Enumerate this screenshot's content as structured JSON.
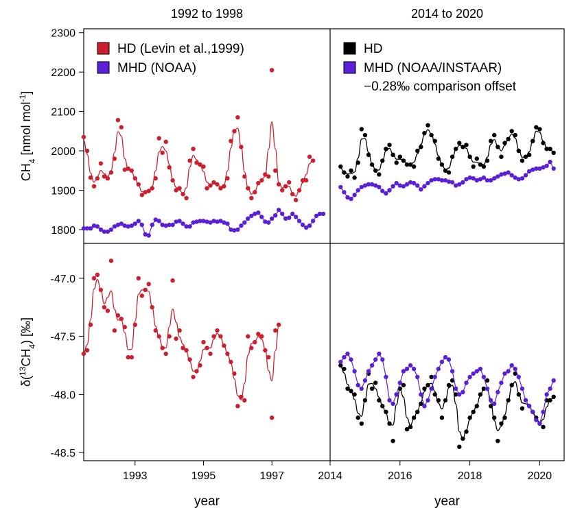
{
  "chart_data": {
    "type": "scatter",
    "columns": [
      {
        "title": "1992 to 1998",
        "xlim": [
          1991.5,
          1998.7
        ],
        "xticks": [
          "1993",
          "1995",
          "1997"
        ],
        "xlabel": "year"
      },
      {
        "title": "2014 to 2020",
        "xlim": [
          2014.0,
          2020.7
        ],
        "xticks": [
          "2014",
          "2016",
          "2018",
          "2020"
        ],
        "xlabel": "year"
      }
    ],
    "rows": [
      {
        "ylabel_main": "CH",
        "ylabel_sub": "4",
        "ylabel_rest": " [nmol mol",
        "ylabel_sup": "-1",
        "ylabel_end": "]",
        "ylim": [
          1765,
          2310
        ],
        "yticks": [
          "1800",
          "1900",
          "2000",
          "2100",
          "2200",
          "2300"
        ]
      },
      {
        "ylabel_main": "δ(",
        "ylabel_sup": "13",
        "ylabel_rest": "CH",
        "ylabel_sub": "4",
        "ylabel_end": ") [‰]",
        "ylim": [
          -48.57,
          -46.7
        ],
        "yticks": [
          "-48.5",
          "-48.0",
          "-47.5",
          "-47.0"
        ]
      }
    ],
    "legend_left": [
      {
        "label": "HD (Levin et al.,1999)",
        "color": "#cc1f2d"
      },
      {
        "label": "MHD (NOAA)",
        "color": "#5a1fd6"
      }
    ],
    "legend_right": [
      {
        "label": "HD",
        "color": "#000000"
      },
      {
        "label": "MHD (NOAA/INSTAAR)",
        "color": "#5a1fd6"
      }
    ],
    "annotation_right": "−0.28‰ comparison offset",
    "series": [
      {
        "name": "HD (Levin et al.,1999)",
        "panel": "ch4_early",
        "color": "#cc1f2d",
        "curve": true,
        "x": [
          1991.5,
          1991.6,
          1991.7,
          1991.8,
          1991.9,
          1992.0,
          1992.1,
          1992.2,
          1992.3,
          1992.4,
          1992.5,
          1992.6,
          1992.7,
          1992.8,
          1992.9,
          1993.0,
          1993.1,
          1993.2,
          1993.3,
          1993.4,
          1993.5,
          1993.6,
          1993.7,
          1993.8,
          1993.9,
          1994.0,
          1994.1,
          1994.2,
          1994.3,
          1994.4,
          1994.5,
          1994.6,
          1994.7,
          1994.8,
          1994.9,
          1995.0,
          1995.1,
          1995.2,
          1995.3,
          1995.4,
          1995.5,
          1995.6,
          1995.7,
          1995.8,
          1995.9,
          1996.0,
          1996.1,
          1996.2,
          1996.3,
          1996.4,
          1996.5,
          1996.6,
          1996.7,
          1996.8,
          1996.9,
          1997.0,
          1997.1,
          1997.2,
          1997.3,
          1997.4,
          1997.5,
          1997.6,
          1997.7,
          1997.8,
          1997.9,
          1998.0,
          1998.1,
          1998.2
        ],
        "y": [
          2035,
          2000,
          1932,
          1910,
          1930,
          1968,
          1935,
          1930,
          1945,
          1980,
          2078,
          2060,
          1952,
          1955,
          1950,
          1930,
          1915,
          1888,
          1895,
          1898,
          1905,
          1930,
          2032,
          1995,
          2023,
          1958,
          1925,
          1900,
          1905,
          1890,
          1880,
          1975,
          2005,
          1970,
          1965,
          1960,
          1905,
          1912,
          1920,
          1915,
          1905,
          1910,
          1930,
          2025,
          2050,
          2085,
          2010,
          1935,
          1905,
          1880,
          1895,
          1918,
          1925,
          1940,
          1935,
          2205,
          1950,
          1915,
          1900,
          1910,
          1920,
          1890,
          1875,
          1900,
          1925,
          1925,
          1985,
          1975
        ]
      },
      {
        "name": "MHD (NOAA)",
        "panel": "ch4_early",
        "color": "#5a1fd6",
        "curve": false,
        "x": [
          1991.5,
          1991.6,
          1991.7,
          1991.8,
          1991.9,
          1992.0,
          1992.1,
          1992.2,
          1992.3,
          1992.4,
          1992.5,
          1992.6,
          1992.7,
          1992.8,
          1992.9,
          1993.0,
          1993.1,
          1993.2,
          1993.3,
          1993.4,
          1993.5,
          1993.6,
          1993.7,
          1993.8,
          1993.9,
          1994.0,
          1994.1,
          1994.2,
          1994.3,
          1994.4,
          1994.5,
          1994.6,
          1994.7,
          1994.8,
          1994.9,
          1995.0,
          1995.1,
          1995.2,
          1995.3,
          1995.4,
          1995.5,
          1995.6,
          1995.7,
          1995.8,
          1995.9,
          1996.0,
          1996.1,
          1996.2,
          1996.3,
          1996.4,
          1996.5,
          1996.6,
          1996.7,
          1996.8,
          1996.9,
          1997.0,
          1997.1,
          1997.2,
          1997.3,
          1997.4,
          1997.5,
          1997.6,
          1997.7,
          1997.8,
          1997.9,
          1998.0,
          1998.1,
          1998.2,
          1998.3,
          1998.4,
          1998.5
        ],
        "y": [
          1803,
          1803,
          1803,
          1810,
          1808,
          1800,
          1795,
          1795,
          1800,
          1808,
          1812,
          1815,
          1810,
          1808,
          1810,
          1815,
          1822,
          1812,
          1788,
          1785,
          1812,
          1825,
          1822,
          1812,
          1810,
          1812,
          1812,
          1820,
          1822,
          1815,
          1808,
          1808,
          1818,
          1820,
          1822,
          1822,
          1820,
          1818,
          1822,
          1820,
          1822,
          1818,
          1815,
          1800,
          1798,
          1800,
          1810,
          1818,
          1828,
          1835,
          1840,
          1843,
          1832,
          1820,
          1818,
          1828,
          1836,
          1850,
          1840,
          1828,
          1830,
          1840,
          1832,
          1822,
          1812,
          1805,
          1810,
          1822,
          1835,
          1840,
          1840
        ]
      },
      {
        "name": "HD",
        "panel": "ch4_late",
        "color": "#000000",
        "curve": true,
        "x": [
          2014.3,
          2014.4,
          2014.5,
          2014.6,
          2014.7,
          2014.8,
          2014.9,
          2015.0,
          2015.1,
          2015.2,
          2015.3,
          2015.4,
          2015.5,
          2015.6,
          2015.7,
          2015.8,
          2015.9,
          2016.0,
          2016.1,
          2016.2,
          2016.3,
          2016.4,
          2016.5,
          2016.6,
          2016.7,
          2016.8,
          2016.9,
          2017.0,
          2017.1,
          2017.2,
          2017.3,
          2017.4,
          2017.5,
          2017.6,
          2017.7,
          2017.8,
          2017.9,
          2018.0,
          2018.1,
          2018.2,
          2018.3,
          2018.4,
          2018.5,
          2018.6,
          2018.7,
          2018.8,
          2018.9,
          2019.0,
          2019.1,
          2019.2,
          2019.3,
          2019.4,
          2019.5,
          2019.6,
          2019.7,
          2019.8,
          2019.9,
          2020.0,
          2020.1,
          2020.2,
          2020.3,
          2020.4
        ],
        "y": [
          1960,
          1945,
          1935,
          1950,
          1932,
          1970,
          2055,
          2040,
          1990,
          1965,
          1950,
          1940,
          1975,
          2005,
          2015,
          1990,
          1970,
          1985,
          1975,
          1965,
          1965,
          1960,
          2000,
          2010,
          2045,
          2065,
          2040,
          2025,
          1980,
          1965,
          1950,
          1945,
          1985,
          2005,
          2020,
          2010,
          2015,
          1985,
          1960,
          1980,
          1965,
          1960,
          1975,
          2025,
          2040,
          2010,
          1985,
          2020,
          2030,
          2050,
          2040,
          2000,
          1975,
          1985,
          1990,
          2025,
          2060,
          2055,
          2020,
          2005,
          2005,
          1995
        ]
      },
      {
        "name": "MHD (NOAA/INSTAAR)",
        "panel": "ch4_late",
        "color": "#5a1fd6",
        "curve": false,
        "x": [
          2014.3,
          2014.4,
          2014.5,
          2014.6,
          2014.7,
          2014.8,
          2014.9,
          2015.0,
          2015.1,
          2015.2,
          2015.3,
          2015.4,
          2015.5,
          2015.6,
          2015.7,
          2015.8,
          2015.9,
          2016.0,
          2016.1,
          2016.2,
          2016.3,
          2016.4,
          2016.5,
          2016.6,
          2016.7,
          2016.8,
          2016.9,
          2017.0,
          2017.1,
          2017.2,
          2017.3,
          2017.4,
          2017.5,
          2017.6,
          2017.7,
          2017.8,
          2017.9,
          2018.0,
          2018.1,
          2018.2,
          2018.3,
          2018.4,
          2018.5,
          2018.6,
          2018.7,
          2018.8,
          2018.9,
          2019.0,
          2019.1,
          2019.2,
          2019.3,
          2019.4,
          2019.5,
          2019.6,
          2019.7,
          2019.8,
          2019.9,
          2020.0,
          2020.1,
          2020.2,
          2020.3,
          2020.4
        ],
        "y": [
          1908,
          1895,
          1882,
          1878,
          1888,
          1900,
          1908,
          1912,
          1915,
          1915,
          1912,
          1908,
          1898,
          1892,
          1900,
          1910,
          1918,
          1912,
          1910,
          1915,
          1920,
          1918,
          1912,
          1902,
          1910,
          1918,
          1925,
          1928,
          1928,
          1925,
          1925,
          1922,
          1920,
          1912,
          1915,
          1920,
          1928,
          1932,
          1930,
          1925,
          1928,
          1932,
          1925,
          1925,
          1930,
          1935,
          1940,
          1942,
          1945,
          1938,
          1932,
          1928,
          1930,
          1938,
          1948,
          1952,
          1955,
          1955,
          1958,
          1962,
          1972,
          1955
        ]
      },
      {
        "name": "HD (Levin et al.,1999)",
        "panel": "d13_early",
        "color": "#cc1f2d",
        "curve": true,
        "x": [
          1991.5,
          1991.6,
          1991.7,
          1991.8,
          1991.9,
          1992.0,
          1992.1,
          1992.2,
          1992.3,
          1992.4,
          1992.5,
          1992.6,
          1992.7,
          1992.8,
          1992.9,
          1993.0,
          1993.1,
          1993.2,
          1993.3,
          1993.4,
          1993.5,
          1993.6,
          1993.7,
          1993.8,
          1993.9,
          1994.0,
          1994.1,
          1994.2,
          1994.3,
          1994.4,
          1994.5,
          1994.6,
          1994.7,
          1994.8,
          1994.9,
          1995.0,
          1995.1,
          1995.2,
          1995.3,
          1995.4,
          1995.5,
          1995.6,
          1995.7,
          1995.8,
          1995.9,
          1996.0,
          1996.1,
          1996.2,
          1996.3,
          1996.4,
          1996.5,
          1996.6,
          1996.7,
          1996.8,
          1996.9,
          1997.0,
          1997.1,
          1997.2
        ],
        "y": [
          -47.65,
          -47.62,
          -47.4,
          -47.0,
          -46.97,
          -47.1,
          -47.25,
          -47.28,
          -46.85,
          -47.45,
          -47.32,
          -47.35,
          -47.42,
          -47.68,
          -47.68,
          -47.4,
          -47.0,
          -47.15,
          -47.1,
          -47.05,
          -47.25,
          -47.45,
          -47.5,
          -47.6,
          -47.65,
          -47.5,
          -47.02,
          -47.52,
          -47.45,
          -47.6,
          -47.62,
          -47.7,
          -47.85,
          -47.8,
          -47.75,
          -47.55,
          -47.6,
          -47.65,
          -47.5,
          -47.45,
          -47.5,
          -47.58,
          -47.65,
          -47.72,
          -47.82,
          -48.1,
          -48.02,
          -48.05,
          -47.5,
          -47.6,
          -47.55,
          -47.48,
          -47.5,
          -47.62,
          -47.68,
          -48.2,
          -47.45,
          -47.4
        ]
      },
      {
        "name": "HD",
        "panel": "d13_late",
        "color": "#000000",
        "curve": true,
        "x": [
          2014.3,
          2014.4,
          2014.5,
          2014.6,
          2014.7,
          2014.8,
          2014.9,
          2015.0,
          2015.1,
          2015.2,
          2015.3,
          2015.4,
          2015.5,
          2015.6,
          2015.7,
          2015.8,
          2015.9,
          2016.0,
          2016.1,
          2016.2,
          2016.3,
          2016.4,
          2016.5,
          2016.6,
          2016.7,
          2016.8,
          2016.9,
          2017.0,
          2017.1,
          2017.2,
          2017.3,
          2017.4,
          2017.5,
          2017.6,
          2017.7,
          2017.8,
          2017.9,
          2018.0,
          2018.1,
          2018.2,
          2018.3,
          2018.4,
          2018.5,
          2018.6,
          2018.7,
          2018.8,
          2018.9,
          2019.0,
          2019.1,
          2019.2,
          2019.3,
          2019.4,
          2019.5,
          2019.6,
          2019.7,
          2019.8,
          2019.9,
          2020.0,
          2020.1,
          2020.2,
          2020.3,
          2020.4
        ],
        "y": [
          -47.75,
          -47.78,
          -47.95,
          -47.97,
          -48.0,
          -48.2,
          -48.25,
          -48.05,
          -47.82,
          -47.95,
          -47.9,
          -48.05,
          -48.1,
          -48.15,
          -48.25,
          -48.4,
          -48.0,
          -47.95,
          -47.92,
          -48.3,
          -48.28,
          -48.2,
          -48.15,
          -48.08,
          -47.95,
          -47.92,
          -47.85,
          -48.0,
          -48.05,
          -48.2,
          -48.05,
          -47.92,
          -47.88,
          -48.0,
          -48.45,
          -48.38,
          -48.32,
          -48.2,
          -48.15,
          -48.1,
          -48.0,
          -47.95,
          -47.88,
          -48.1,
          -48.2,
          -48.4,
          -48.25,
          -48.2,
          -48.05,
          -47.92,
          -47.82,
          -48.0,
          -48.12,
          -48.05,
          -48.1,
          -48.15,
          -48.2,
          -48.25,
          -48.28,
          -48.05,
          -48.05,
          -48.02
        ]
      },
      {
        "name": "MHD (NOAA/INSTAAR)",
        "panel": "d13_late",
        "color": "#5a1fd6",
        "curve": false,
        "x": [
          2014.3,
          2014.4,
          2014.5,
          2014.6,
          2014.7,
          2014.8,
          2014.9,
          2015.0,
          2015.1,
          2015.2,
          2015.3,
          2015.4,
          2015.5,
          2015.6,
          2015.7,
          2015.8,
          2015.9,
          2016.0,
          2016.1,
          2016.2,
          2016.3,
          2016.4,
          2016.5,
          2016.6,
          2016.7,
          2016.8,
          2016.9,
          2017.0,
          2017.1,
          2017.2,
          2017.3,
          2017.4,
          2017.5,
          2017.6,
          2017.7,
          2017.8,
          2017.9,
          2018.0,
          2018.1,
          2018.2,
          2018.3,
          2018.4,
          2018.5,
          2018.6,
          2018.7,
          2018.8,
          2018.9,
          2019.0,
          2019.1,
          2019.2,
          2019.3,
          2019.4,
          2019.5,
          2019.6,
          2019.7,
          2019.8,
          2019.9,
          2020.0,
          2020.1,
          2020.2,
          2020.3,
          2020.4
        ],
        "y": [
          -47.72,
          -47.68,
          -47.65,
          -47.7,
          -47.8,
          -47.92,
          -47.95,
          -47.88,
          -47.8,
          -47.75,
          -47.7,
          -47.65,
          -47.7,
          -47.85,
          -48.05,
          -48.08,
          -48.0,
          -47.9,
          -47.8,
          -47.78,
          -47.75,
          -47.78,
          -47.85,
          -48.0,
          -48.1,
          -48.05,
          -47.95,
          -47.85,
          -47.78,
          -47.72,
          -47.68,
          -47.7,
          -47.8,
          -47.95,
          -48.0,
          -47.98,
          -47.9,
          -47.85,
          -47.82,
          -47.8,
          -47.78,
          -47.85,
          -47.95,
          -48.05,
          -48.08,
          -47.98,
          -47.9,
          -47.82,
          -47.8,
          -47.75,
          -47.78,
          -47.85,
          -47.95,
          -48.05,
          -48.1,
          -48.15,
          -48.22,
          -48.25,
          -48.15,
          -48.0,
          -47.95,
          -47.88
        ]
      }
    ]
  }
}
